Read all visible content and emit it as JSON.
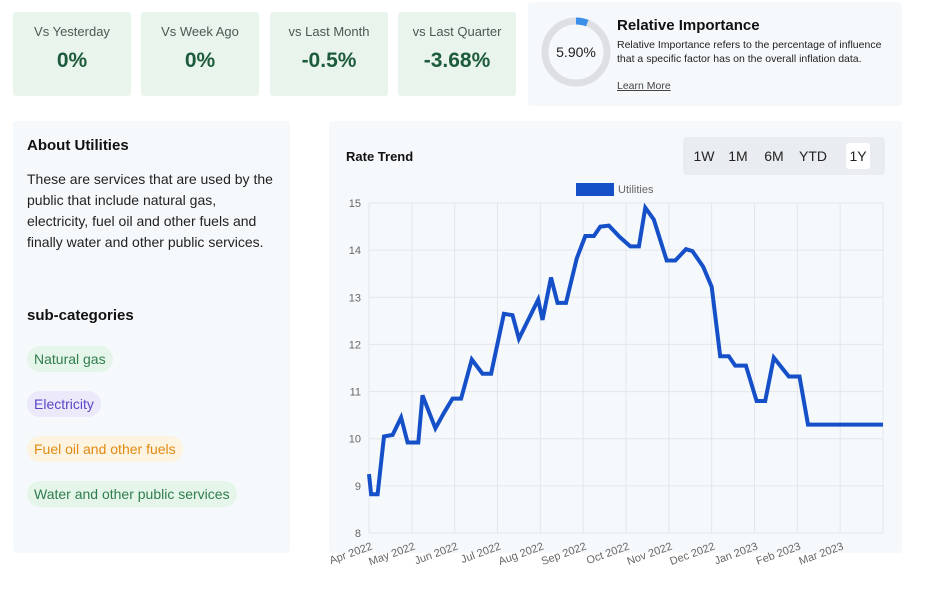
{
  "stats": [
    {
      "label": "Vs Yesterday",
      "value": "0%"
    },
    {
      "label": "Vs Week Ago",
      "value": "0%"
    },
    {
      "label": "vs Last Month",
      "value": "-0.5%"
    },
    {
      "label": "vs Last Quarter",
      "value": "-3.68%"
    }
  ],
  "importance": {
    "value_text": "5.90%",
    "value": 5.9,
    "title": "Relative Importance",
    "description": "Relative Importance refers to the percentage of influence that a specific factor has on the overall inflation data.",
    "link": "Learn More",
    "ring_color": "#3b8fe8",
    "ring_track_color": "#dddfe2"
  },
  "about": {
    "title": "About Utilities",
    "text": "These are services that are used by the public that include natural gas, electricity, fuel oil and other fuels and finally water and other public services.",
    "subcategories_title": "sub-categories",
    "subcategories": [
      {
        "label": "Natural gas",
        "color": "green"
      },
      {
        "label": "Electricity",
        "color": "purple"
      },
      {
        "label": "Fuel oil and other fuels",
        "color": "orange"
      },
      {
        "label": "Water and other public services",
        "color": "green"
      }
    ]
  },
  "chart": {
    "title": "Rate Trend",
    "ranges": [
      "1W",
      "1M",
      "6M",
      "YTD",
      "1Y"
    ],
    "active_range": "1Y"
  },
  "chart_data": {
    "type": "line",
    "title": "Rate Trend",
    "series": [
      {
        "name": "Utilities",
        "color": "#1550c8",
        "x": [
          0.0,
          0.05,
          0.2,
          0.35,
          0.55,
          0.75,
          0.9,
          1.15,
          1.25,
          1.55,
          1.75,
          1.95,
          2.15,
          2.4,
          2.65,
          2.85,
          3.15,
          3.35,
          3.5,
          3.95,
          4.05,
          4.25,
          4.4,
          4.6,
          4.85,
          5.05,
          5.25,
          5.4,
          5.6,
          5.85,
          6.1,
          6.3,
          6.45,
          6.65,
          6.95,
          7.15,
          7.4,
          7.55,
          7.8,
          8.0,
          8.2,
          8.4,
          8.55,
          8.8,
          9.05,
          9.25,
          9.45,
          9.8,
          10.05,
          10.25,
          10.45,
          10.65,
          10.85,
          11.05,
          11.25,
          11.45,
          11.65,
          11.85,
          12.0
        ],
        "values": [
          9.25,
          8.82,
          8.82,
          10.05,
          10.08,
          10.45,
          9.92,
          9.92,
          10.92,
          10.22,
          10.55,
          10.85,
          10.85,
          11.68,
          11.38,
          11.38,
          12.65,
          12.62,
          12.12,
          12.95,
          12.52,
          13.42,
          12.88,
          12.88,
          13.82,
          14.3,
          14.3,
          14.5,
          14.52,
          14.28,
          14.08,
          14.08,
          14.9,
          14.65,
          13.78,
          13.78,
          14.02,
          13.98,
          13.65,
          13.22,
          11.75,
          11.75,
          11.55,
          11.55,
          10.8,
          10.8,
          11.72,
          11.32,
          11.32,
          10.3,
          10.3,
          10.3,
          10.3,
          10.3,
          10.3,
          10.3,
          10.3,
          10.3,
          10.3
        ]
      }
    ],
    "xlabels": [
      "Apr 2022",
      "May 2022",
      "Jun 2022",
      "Jul 2022",
      "Aug 2022",
      "Sep 2022",
      "Oct 2022",
      "Nov 2022",
      "Dec 2022",
      "Jan 2023",
      "Feb 2023",
      "Mar 2023"
    ],
    "ylim": [
      8,
      15
    ],
    "yticks": [
      8,
      9,
      10,
      11,
      12,
      13,
      14,
      15
    ],
    "legend": "top-center",
    "grid": true
  }
}
